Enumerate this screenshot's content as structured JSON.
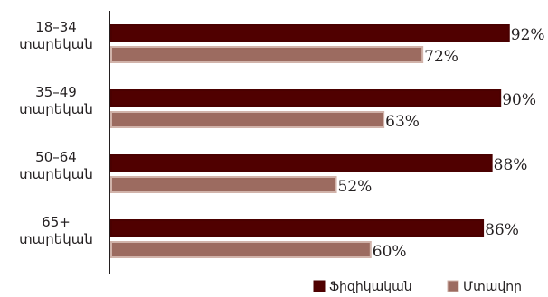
{
  "chart_data": {
    "type": "bar",
    "orientation": "horizontal",
    "categories": [
      [
        "18–34",
        "տարեկան"
      ],
      [
        "35–49",
        "տարեկան"
      ],
      [
        "50–64",
        "տարեկան"
      ],
      [
        "65+",
        "տարեկան"
      ]
    ],
    "series": [
      {
        "name": "Ֆիզիկական",
        "values": [
          92,
          90,
          88,
          86
        ],
        "labels": [
          "92%",
          "90%",
          "88%",
          "86%"
        ],
        "color": "#500000",
        "stroke": "#4a0000"
      },
      {
        "name": "Մտավոր",
        "values": [
          72,
          63,
          52,
          60
        ],
        "labels": [
          "72%",
          "63%",
          "52%",
          "60%"
        ],
        "color": "#9c6b60",
        "stroke": "#d1b3aa"
      }
    ],
    "xlim": [
      0,
      100
    ],
    "grid": false,
    "legend": "bottom-right"
  }
}
